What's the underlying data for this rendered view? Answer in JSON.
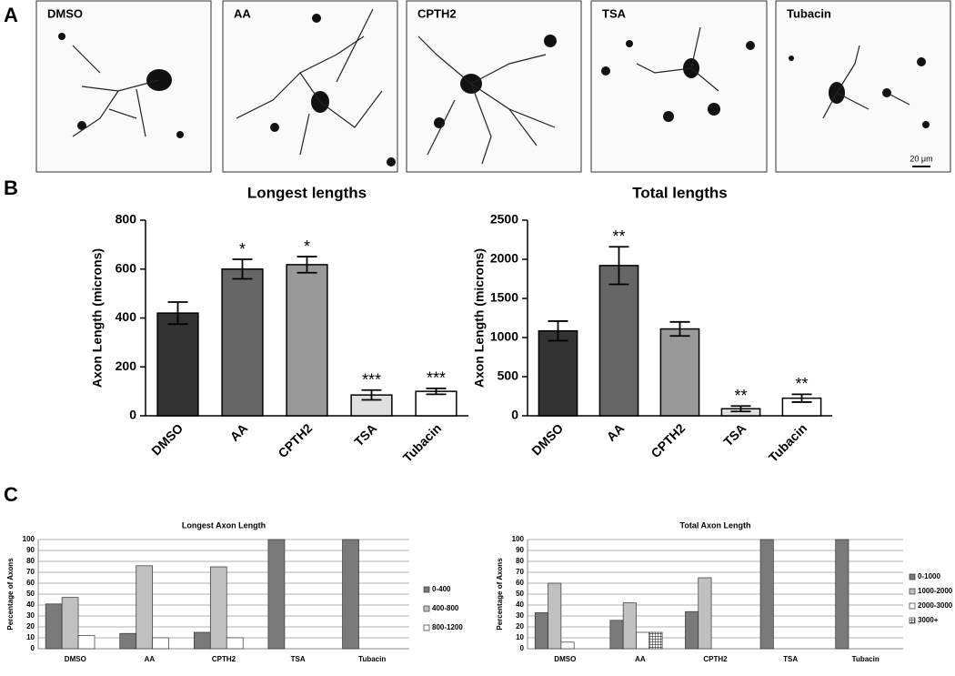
{
  "panels": {
    "letters": [
      "A",
      "B",
      "C"
    ],
    "images": [
      "DMSO",
      "AA",
      "CPTH2",
      "TSA",
      "Tubacin"
    ],
    "scale_bar": "20 μm"
  },
  "chart_data": [
    {
      "type": "bar",
      "title": "Longest lengths",
      "y_label": "Axon Length (microns)",
      "categories": [
        "DMSO",
        "AA",
        "CPTH2",
        "TSA",
        "Tubacin"
      ],
      "values": [
        420,
        600,
        618,
        85,
        100
      ],
      "errors": [
        45,
        40,
        33,
        20,
        12
      ],
      "annotations": [
        null,
        "*",
        "*",
        "***",
        "***"
      ],
      "colors": [
        "#333333",
        "#666666",
        "#999999",
        "#e0e0e0",
        "#ffffff"
      ],
      "ylim": [
        0,
        800
      ],
      "yticks": [
        0,
        200,
        400,
        600,
        800
      ],
      "grid": false
    },
    {
      "type": "bar",
      "title": "Total lengths",
      "y_label": "Axon Length (microns)",
      "categories": [
        "DMSO",
        "AA",
        "CPTH2",
        "TSA",
        "Tubacin"
      ],
      "values": [
        1085,
        1920,
        1110,
        90,
        225
      ],
      "errors": [
        125,
        240,
        90,
        35,
        50
      ],
      "annotations": [
        null,
        "**",
        null,
        "**",
        "**"
      ],
      "colors": [
        "#333333",
        "#666666",
        "#999999",
        "#e0e0e0",
        "#ffffff"
      ],
      "ylim": [
        0,
        2500
      ],
      "yticks": [
        0,
        500,
        1000,
        1500,
        2000,
        2500
      ],
      "grid": false
    },
    {
      "type": "grouped-bar",
      "title": "Longest Axon Length",
      "y_label": "Percentage of Axons",
      "categories": [
        "DMSO",
        "AA",
        "CPTH2",
        "TSA",
        "Tubacin"
      ],
      "series": [
        {
          "name": "0-400",
          "color": "#7a7a7a",
          "values": [
            41,
            14,
            15,
            100,
            100
          ]
        },
        {
          "name": "400-800",
          "color": "#c0c0c0",
          "values": [
            47,
            76,
            75,
            0,
            0
          ]
        },
        {
          "name": "800-1200",
          "color": "#ffffff",
          "values": [
            12,
            10,
            10,
            0,
            0
          ]
        }
      ],
      "ylim": [
        0,
        100
      ],
      "yticks": [
        0,
        10,
        20,
        30,
        40,
        50,
        60,
        70,
        80,
        90,
        100
      ],
      "grid": true,
      "legend": "right"
    },
    {
      "type": "grouped-bar",
      "title": "Total Axon Length",
      "y_label": "Percentage of Axons",
      "categories": [
        "DMSO",
        "AA",
        "CPTH2",
        "TSA",
        "Tubacin"
      ],
      "series": [
        {
          "name": "0-1000",
          "color": "#7a7a7a",
          "values": [
            33,
            26,
            34,
            100,
            100
          ]
        },
        {
          "name": "1000-2000",
          "color": "#c0c0c0",
          "values": [
            60,
            42,
            65,
            0,
            0
          ]
        },
        {
          "name": "2000-3000",
          "color": "#ffffff",
          "values": [
            6,
            15,
            0,
            0,
            0
          ]
        },
        {
          "name": "3000+",
          "color": "#555555",
          "hatch": true,
          "values": [
            0,
            15,
            0,
            0,
            0
          ]
        }
      ],
      "ylim": [
        0,
        100
      ],
      "yticks": [
        0,
        10,
        20,
        30,
        40,
        50,
        60,
        70,
        80,
        90,
        100
      ],
      "grid": true,
      "legend": "right"
    }
  ]
}
